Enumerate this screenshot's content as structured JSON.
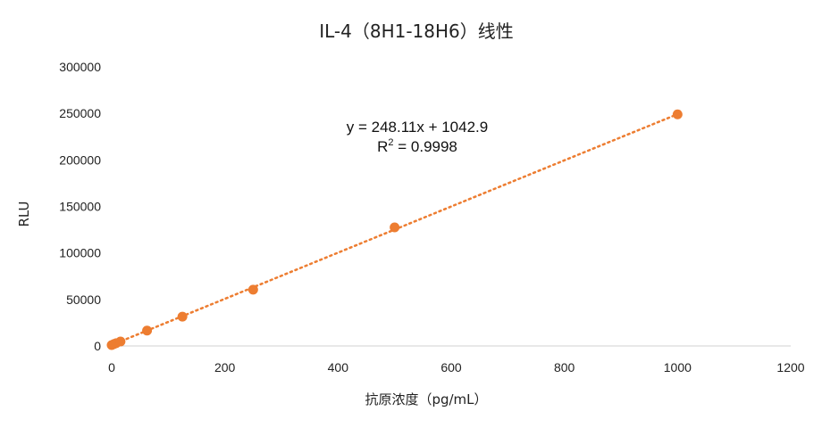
{
  "chart_data": {
    "type": "scatter",
    "title": "IL-4（8H1-18H6）线性",
    "xlabel": "抗原浓度（pg/mL）",
    "ylabel": "RLU",
    "xlim": [
      0,
      1200
    ],
    "ylim": [
      0,
      300000
    ],
    "x_ticks": [
      "0",
      "200",
      "400",
      "600",
      "800",
      "1000",
      "1200"
    ],
    "y_ticks": [
      "0",
      "50000",
      "100000",
      "150000",
      "200000",
      "250000",
      "300000"
    ],
    "grid": false,
    "legend": "none",
    "series": [
      {
        "color": "#ED7D31",
        "points": [
          {
            "x": 0,
            "y": 1000
          },
          {
            "x": 3.9,
            "y": 2000
          },
          {
            "x": 7.8,
            "y": 3000
          },
          {
            "x": 15.6,
            "y": 4800
          },
          {
            "x": 62.5,
            "y": 16500
          },
          {
            "x": 125,
            "y": 31500
          },
          {
            "x": 250,
            "y": 60500
          },
          {
            "x": 500,
            "y": 127500
          },
          {
            "x": 1000,
            "y": 249000
          }
        ]
      }
    ],
    "trendline": {
      "type": "linear",
      "slope": 248.11,
      "intercept": 1042.9,
      "style": "dotted",
      "color": "#ED7D31",
      "equation": "y = 248.11x + 1042.9",
      "r2_prefix": "R",
      "r2_sup": "2",
      "r2_value": " = 0.9998"
    }
  }
}
